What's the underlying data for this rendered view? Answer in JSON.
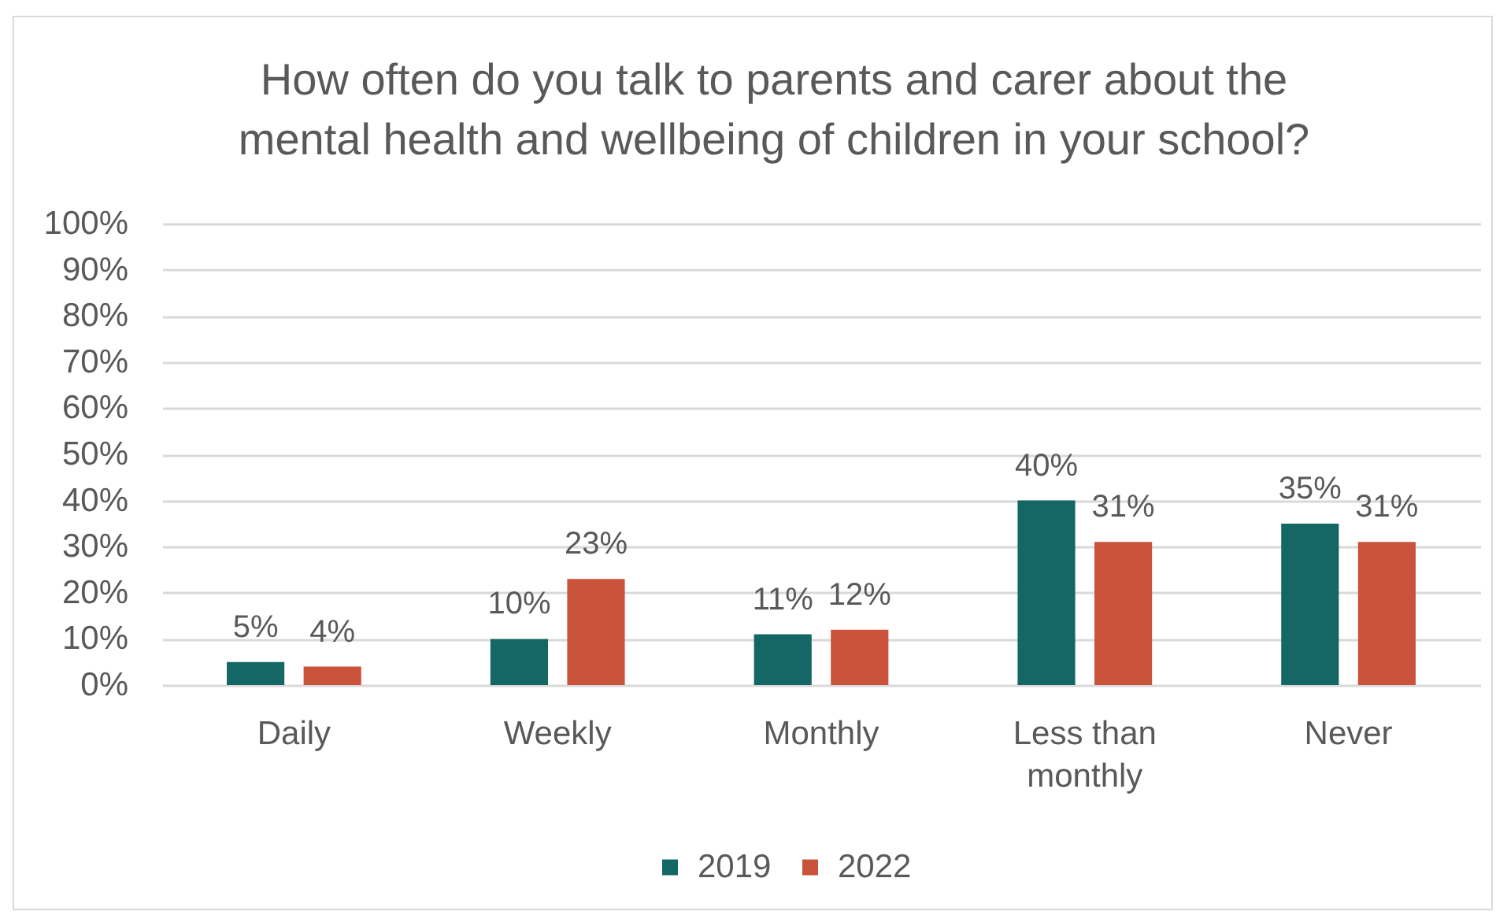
{
  "chart_data": {
    "type": "bar",
    "title": "How often do you talk to parents and carer about the mental health and wellbeing of children in your school?",
    "categories": [
      "Daily",
      "Weekly",
      "Monthly",
      "Less than monthly",
      "Never"
    ],
    "series": [
      {
        "name": "2019",
        "color": "#156766",
        "values": [
          5,
          10,
          11,
          40,
          35
        ],
        "value_labels": [
          "5%",
          "10%",
          "11%",
          "40%",
          "35%"
        ]
      },
      {
        "name": "2022",
        "color": "#c9533b",
        "values": [
          4,
          23,
          12,
          31,
          31
        ],
        "value_labels": [
          "4%",
          "23%",
          "12%",
          "31%",
          "31%"
        ]
      }
    ],
    "ylim": [
      0,
      100
    ],
    "yticks": [
      {
        "value": 0,
        "label": "0%"
      },
      {
        "value": 10,
        "label": "10%"
      },
      {
        "value": 20,
        "label": "20%"
      },
      {
        "value": 30,
        "label": "30%"
      },
      {
        "value": 40,
        "label": "40%"
      },
      {
        "value": 50,
        "label": "50%"
      },
      {
        "value": 60,
        "label": "60%"
      },
      {
        "value": 70,
        "label": "70%"
      },
      {
        "value": 80,
        "label": "80%"
      },
      {
        "value": 90,
        "label": "90%"
      },
      {
        "value": 100,
        "label": "100%"
      }
    ],
    "grid": "y",
    "legend": "bottom"
  }
}
